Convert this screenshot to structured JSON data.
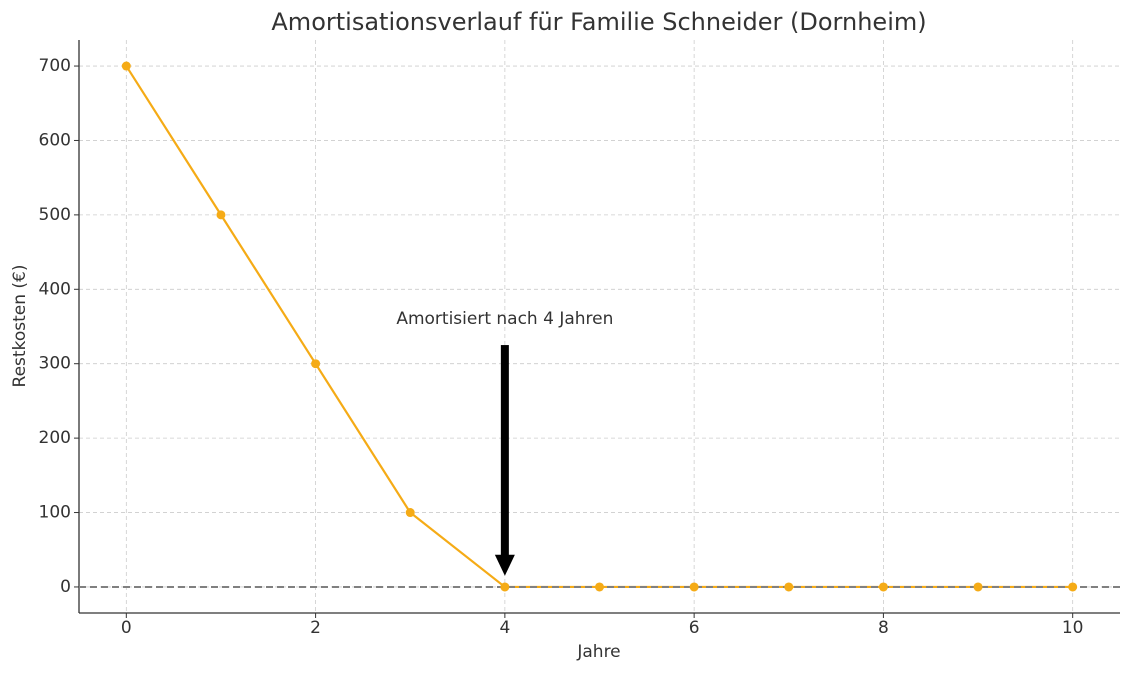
{
  "chart_data": {
    "type": "line",
    "title": "Amortisationsverlauf für Familie Schneider (Dornheim)",
    "x_label": "Jahre",
    "y_label": "Restkosten (€)",
    "x": [
      0,
      1,
      2,
      3,
      4,
      5,
      6,
      7,
      8,
      9,
      10
    ],
    "values": [
      700,
      500,
      300,
      100,
      0,
      0,
      0,
      0,
      0,
      0,
      0
    ],
    "color": "#f5ab16",
    "xlim": [
      -0.5,
      10.5
    ],
    "xticks": [
      0,
      2,
      4,
      6,
      8,
      10
    ],
    "ylim": [
      -35,
      735
    ],
    "yticks": [
      0,
      100,
      200,
      300,
      400,
      500,
      600,
      700
    ],
    "grid": true,
    "reference_line": {
      "y": 0,
      "color": "#808080"
    },
    "annotation": {
      "text": "Amortisiert nach 4 Jahren",
      "x": 4,
      "y": 360,
      "arrow_to": [
        4,
        15
      ]
    }
  }
}
